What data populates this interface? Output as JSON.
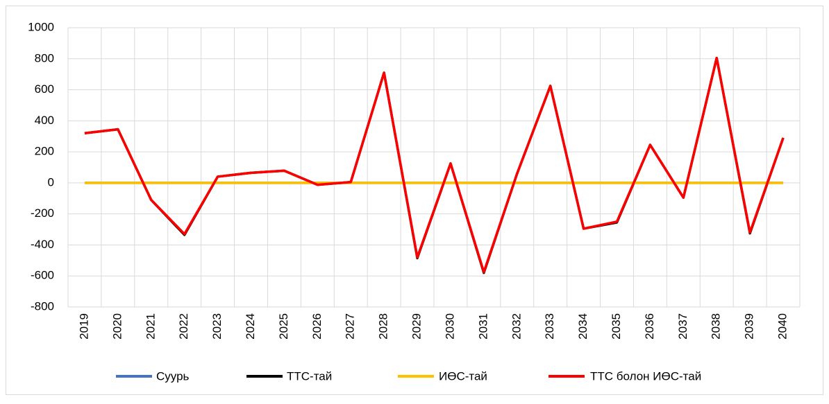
{
  "chart_data": {
    "type": "line",
    "categories": [
      "2019",
      "2020",
      "2021",
      "2022",
      "2023",
      "2024",
      "2025",
      "2026",
      "2027",
      "2028",
      "2029",
      "2030",
      "2031",
      "2032",
      "2033",
      "2034",
      "2035",
      "2036",
      "2037",
      "2038",
      "2039",
      "2040"
    ],
    "series": [
      {
        "name": "Суурь",
        "color": "#4472c4",
        "values": [
          0,
          0,
          0,
          0,
          0,
          0,
          0,
          0,
          0,
          0,
          0,
          0,
          0,
          0,
          0,
          0,
          0,
          0,
          0,
          0,
          0,
          0
        ]
      },
      {
        "name": "ТТС-тай",
        "color": "#000000",
        "values": [
          320,
          345,
          -110,
          -335,
          40,
          65,
          78,
          -12,
          5,
          710,
          -485,
          125,
          -580,
          60,
          625,
          -295,
          -255,
          245,
          -95,
          805,
          -325,
          290
        ]
      },
      {
        "name": "ИӨС-тай",
        "color": "#ffc000",
        "values": [
          0,
          0,
          0,
          0,
          0,
          0,
          0,
          0,
          0,
          0,
          0,
          0,
          0,
          0,
          0,
          0,
          0,
          0,
          0,
          0,
          0,
          0
        ]
      },
      {
        "name": "ТТС болон ИӨС-тай",
        "color": "#ff0000",
        "values": [
          320,
          345,
          -110,
          -330,
          40,
          65,
          78,
          -12,
          5,
          710,
          -480,
          125,
          -575,
          60,
          625,
          -295,
          -250,
          245,
          -95,
          805,
          -320,
          290
        ]
      }
    ],
    "ylim": [
      -800,
      1000
    ],
    "yticks": [
      -800,
      -600,
      -400,
      -200,
      0,
      200,
      400,
      600,
      800,
      1000
    ],
    "grid": true,
    "legend": "bottom"
  }
}
